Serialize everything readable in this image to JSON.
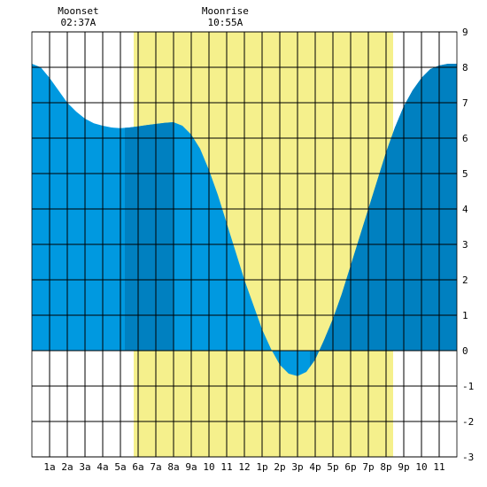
{
  "chart_data": {
    "type": "area",
    "title": "",
    "xlabel": "",
    "ylabel": "",
    "xlim": [
      0,
      24
    ],
    "ylim": [
      -3,
      9
    ],
    "x_tick_labels": [
      "1a",
      "2a",
      "3a",
      "4a",
      "5a",
      "6a",
      "7a",
      "8a",
      "9a",
      "10",
      "11",
      "12",
      "1p",
      "2p",
      "3p",
      "4p",
      "5p",
      "6p",
      "7p",
      "8p",
      "9p",
      "10",
      "11"
    ],
    "y_ticks": [
      -3,
      -2,
      -1,
      0,
      1,
      2,
      3,
      4,
      5,
      6,
      7,
      8,
      9
    ],
    "grid": true,
    "daylight": {
      "start": 5.75,
      "end": 20.4
    },
    "moon_events": [
      {
        "label": "Moonset",
        "time": "02:37A",
        "x": 2.62
      },
      {
        "label": "Moonrise",
        "time": "10:55A",
        "x": 10.92
      }
    ],
    "highlight_bands": [
      {
        "start": 5.25,
        "end": 8.0
      },
      {
        "start": 15.7,
        "end": 24.0
      }
    ],
    "series": [
      {
        "x": [
          0,
          0.5,
          1,
          1.5,
          2,
          2.5,
          3,
          3.5,
          4,
          4.5,
          5,
          5.5,
          6,
          6.5,
          7,
          7.5,
          8,
          8.5,
          9,
          9.5,
          10,
          10.5,
          11,
          11.5,
          12,
          12.5,
          13,
          13.5,
          14,
          14.5,
          15,
          15.5,
          16,
          16.5,
          17,
          17.5,
          18,
          18.5,
          19,
          19.5,
          20,
          20.5,
          21,
          21.5,
          22,
          22.5,
          23,
          23.5,
          24
        ],
        "values": [
          8.1,
          8.0,
          7.7,
          7.35,
          7.0,
          6.75,
          6.55,
          6.42,
          6.35,
          6.3,
          6.28,
          6.3,
          6.33,
          6.37,
          6.4,
          6.43,
          6.45,
          6.35,
          6.1,
          5.7,
          5.1,
          4.4,
          3.6,
          2.8,
          2.0,
          1.3,
          0.6,
          0.05,
          -0.4,
          -0.65,
          -0.72,
          -0.6,
          -0.25,
          0.3,
          0.9,
          1.6,
          2.4,
          3.2,
          4.0,
          4.8,
          5.6,
          6.3,
          6.9,
          7.35,
          7.7,
          7.95,
          8.05,
          8.1,
          8.1
        ]
      }
    ],
    "colors": {
      "tide": "#0099e0",
      "tide_highlight": "#0080c0",
      "daylight": "#f5f08c",
      "grid": "#000000",
      "background": "#ffffff"
    }
  }
}
